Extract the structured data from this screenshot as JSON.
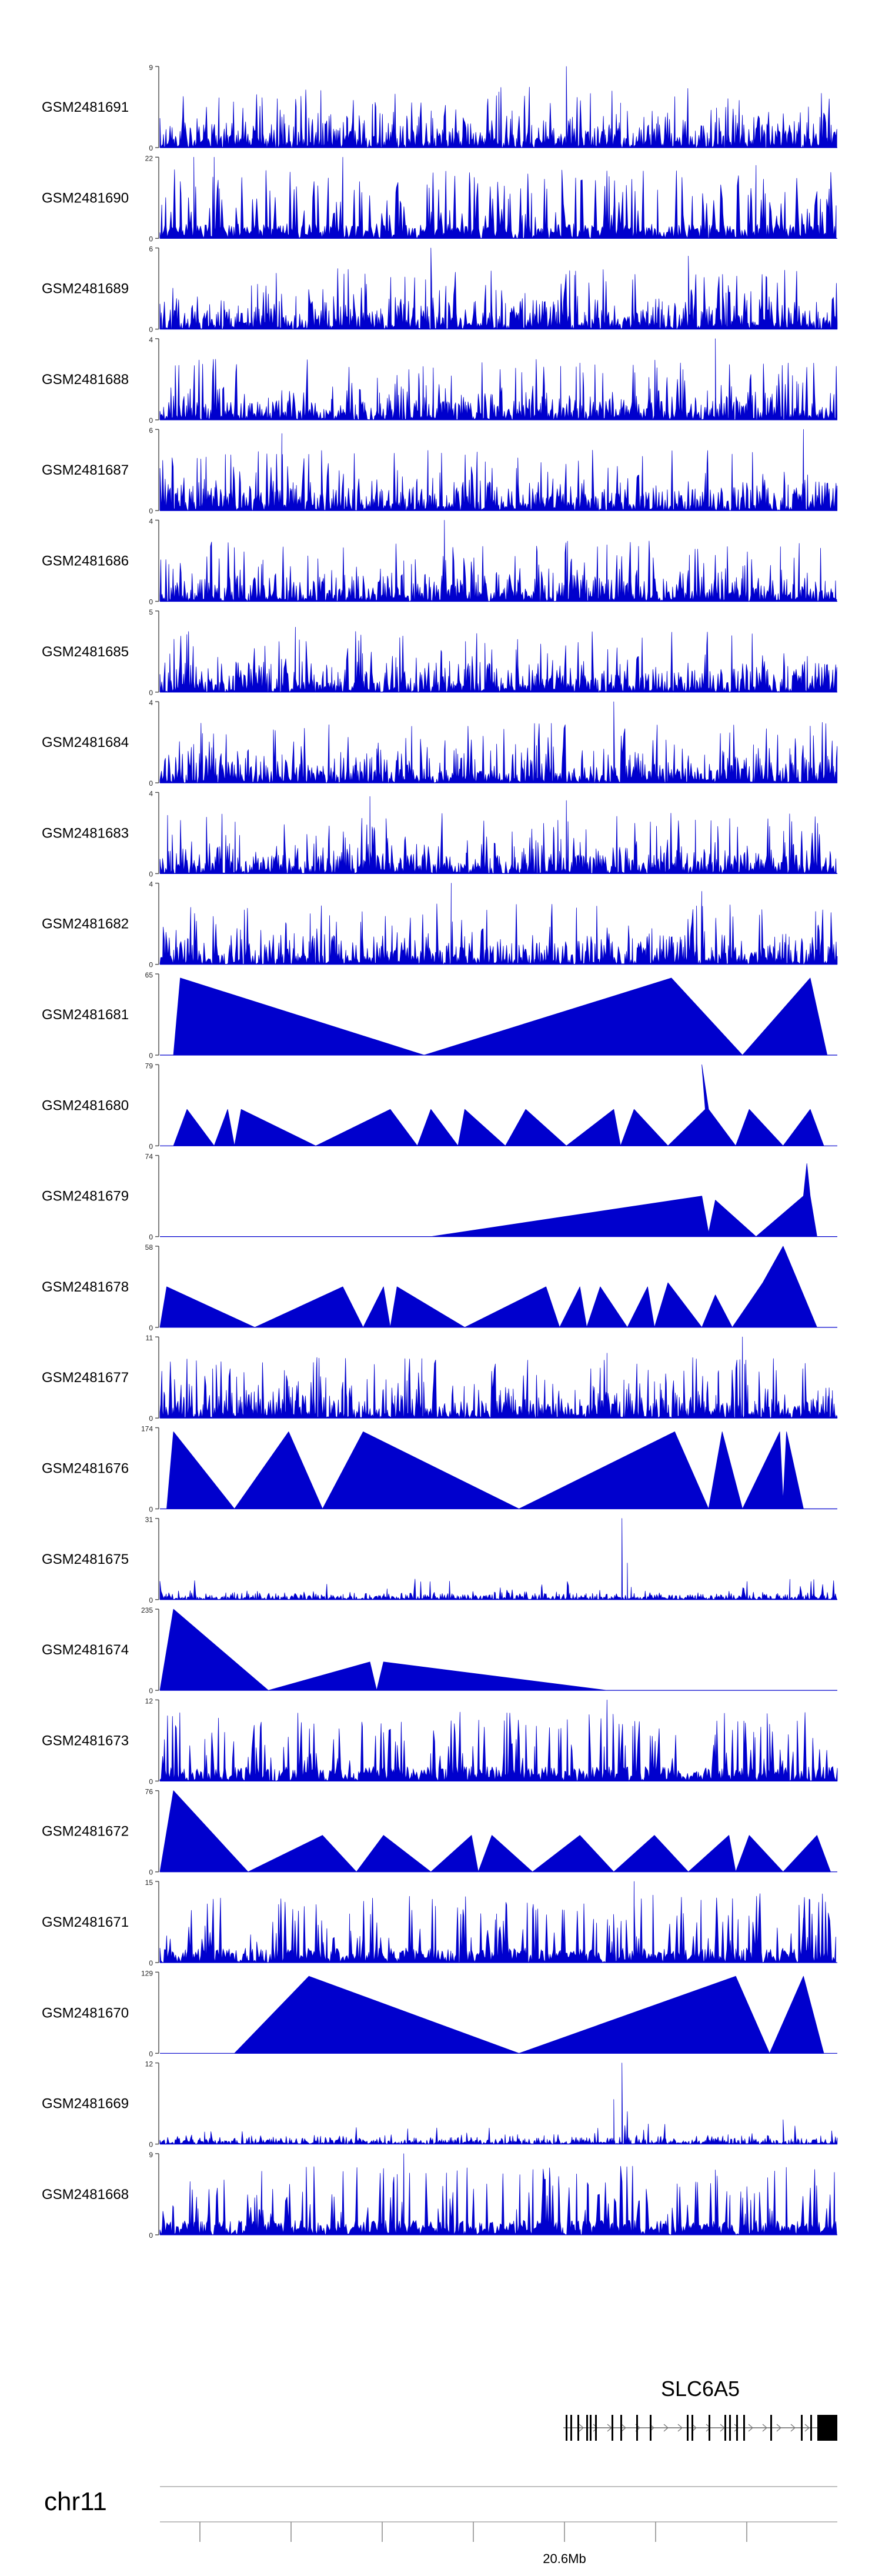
{
  "chart_data": {
    "type": "area",
    "chromosome": "chr11",
    "locus_label": "20.6Mb",
    "gene": {
      "name": "SLC6A5",
      "strand": "+"
    },
    "x_axis": {
      "ticks": 8,
      "labeled_tick": "20.6Mb"
    },
    "tracks": [
      {
        "sample": "GSM2481691",
        "ymin": 0,
        "ymax": 9,
        "style": "dense",
        "seed": 11,
        "peaks": [
          [
            0.6,
            1.0
          ],
          [
            0.68,
            0.55
          ],
          [
            0.69,
            0.45
          ],
          [
            0.85,
            0.4
          ]
        ]
      },
      {
        "sample": "GSM2481690",
        "ymin": 0,
        "ymax": 22,
        "style": "comb",
        "seed": 12,
        "peaks": [
          [
            0.03,
            0.7
          ],
          [
            0.05,
            1.0
          ],
          [
            0.08,
            1.0
          ],
          [
            0.27,
            1.0
          ],
          [
            0.88,
            0.9
          ]
        ]
      },
      {
        "sample": "GSM2481689",
        "ymin": 0,
        "ymax": 6,
        "style": "dense",
        "seed": 13,
        "peaks": [
          [
            0.4,
            1.0
          ],
          [
            0.78,
            0.9
          ]
        ]
      },
      {
        "sample": "GSM2481688",
        "ymin": 0,
        "ymax": 4,
        "style": "dense",
        "seed": 14,
        "peaks": [
          [
            0.82,
            1.0
          ],
          [
            0.62,
            0.7
          ]
        ]
      },
      {
        "sample": "GSM2481687",
        "ymin": 0,
        "ymax": 6,
        "style": "dense",
        "seed": 15,
        "peaks": [
          [
            0.18,
            0.95
          ],
          [
            0.95,
            1.0
          ]
        ]
      },
      {
        "sample": "GSM2481686",
        "ymin": 0,
        "ymax": 4,
        "style": "dense",
        "seed": 16,
        "peaks": [
          [
            0.42,
            1.0
          ]
        ]
      },
      {
        "sample": "GSM2481685",
        "ymin": 0,
        "ymax": 5,
        "style": "dense",
        "seed": 17,
        "peaks": [
          [
            0.2,
            0.8
          ]
        ]
      },
      {
        "sample": "GSM2481684",
        "ymin": 0,
        "ymax": 4,
        "style": "dense",
        "seed": 18,
        "peaks": [
          [
            0.67,
            1.0
          ],
          [
            0.96,
            0.7
          ]
        ]
      },
      {
        "sample": "GSM2481683",
        "ymin": 0,
        "ymax": 4,
        "style": "dense",
        "seed": 19,
        "peaks": [
          [
            0.31,
            0.95
          ],
          [
            0.6,
            0.9
          ]
        ]
      },
      {
        "sample": "GSM2481682",
        "ymin": 0,
        "ymax": 4,
        "style": "dense",
        "seed": 20,
        "peaks": [
          [
            0.43,
            1.0
          ],
          [
            0.8,
            0.9
          ]
        ]
      },
      {
        "sample": "GSM2481681",
        "ymin": 0,
        "ymax": 65,
        "style": "sparse",
        "seed": 21,
        "points": [
          [
            0.0,
            0.0
          ],
          [
            0.02,
            0.0
          ],
          [
            0.03,
            0.95
          ],
          [
            0.39,
            0.0
          ],
          [
            0.755,
            0.95
          ],
          [
            0.86,
            0.0
          ],
          [
            0.96,
            0.95
          ],
          [
            0.985,
            0.0
          ]
        ]
      },
      {
        "sample": "GSM2481680",
        "ymin": 0,
        "ymax": 79,
        "style": "sparse",
        "seed": 22,
        "points": [
          [
            0.02,
            0.0
          ],
          [
            0.04,
            0.45
          ],
          [
            0.08,
            0.0
          ],
          [
            0.1,
            0.45
          ],
          [
            0.11,
            0.0
          ],
          [
            0.12,
            0.45
          ],
          [
            0.23,
            0.0
          ],
          [
            0.34,
            0.45
          ],
          [
            0.38,
            0.0
          ],
          [
            0.4,
            0.45
          ],
          [
            0.44,
            0.0
          ],
          [
            0.45,
            0.45
          ],
          [
            0.51,
            0.0
          ],
          [
            0.54,
            0.45
          ],
          [
            0.6,
            0.0
          ],
          [
            0.67,
            0.45
          ],
          [
            0.68,
            0.0
          ],
          [
            0.7,
            0.45
          ],
          [
            0.75,
            0.0
          ],
          [
            0.805,
            0.45
          ],
          [
            0.8,
            1.0
          ],
          [
            0.81,
            0.45
          ],
          [
            0.85,
            0.0
          ],
          [
            0.87,
            0.45
          ],
          [
            0.92,
            0.0
          ],
          [
            0.96,
            0.45
          ],
          [
            0.98,
            0.0
          ]
        ]
      },
      {
        "sample": "GSM2481679",
        "ymin": 0,
        "ymax": 74,
        "style": "sparse",
        "seed": 23,
        "points": [
          [
            0.4,
            0.0
          ],
          [
            0.8,
            0.5
          ],
          [
            0.81,
            0.05
          ],
          [
            0.82,
            0.45
          ],
          [
            0.88,
            0.0
          ],
          [
            0.95,
            0.5
          ],
          [
            0.955,
            0.9
          ],
          [
            0.96,
            0.5
          ],
          [
            0.97,
            0.0
          ]
        ]
      },
      {
        "sample": "GSM2481678",
        "ymin": 0,
        "ymax": 58,
        "style": "sparse",
        "seed": 24,
        "points": [
          [
            0.0,
            0.0
          ],
          [
            0.01,
            0.5
          ],
          [
            0.14,
            0.0
          ],
          [
            0.27,
            0.5
          ],
          [
            0.3,
            0.0
          ],
          [
            0.33,
            0.5
          ],
          [
            0.34,
            0.0
          ],
          [
            0.35,
            0.5
          ],
          [
            0.45,
            0.0
          ],
          [
            0.57,
            0.5
          ],
          [
            0.59,
            0.0
          ],
          [
            0.62,
            0.5
          ],
          [
            0.63,
            0.0
          ],
          [
            0.65,
            0.5
          ],
          [
            0.69,
            0.0
          ],
          [
            0.72,
            0.5
          ],
          [
            0.73,
            0.0
          ],
          [
            0.75,
            0.55
          ],
          [
            0.8,
            0.0
          ],
          [
            0.82,
            0.4
          ],
          [
            0.845,
            0.0
          ],
          [
            0.89,
            0.55
          ],
          [
            0.92,
            1.0
          ],
          [
            0.95,
            0.4
          ],
          [
            0.97,
            0.0
          ]
        ]
      },
      {
        "sample": "GSM2481677",
        "ymin": 0,
        "ymax": 11,
        "style": "dense",
        "seed": 25,
        "peaks": [
          [
            0.66,
            0.8
          ],
          [
            0.86,
            1.0
          ],
          [
            0.73,
            0.45
          ]
        ]
      },
      {
        "sample": "GSM2481676",
        "ymin": 0,
        "ymax": 174,
        "style": "sparse",
        "seed": 26,
        "points": [
          [
            0.01,
            0.0
          ],
          [
            0.02,
            0.95
          ],
          [
            0.11,
            0.0
          ],
          [
            0.19,
            0.95
          ],
          [
            0.24,
            0.0
          ],
          [
            0.3,
            0.95
          ],
          [
            0.53,
            0.0
          ],
          [
            0.76,
            0.95
          ],
          [
            0.81,
            0.0
          ],
          [
            0.83,
            0.95
          ],
          [
            0.86,
            0.0
          ],
          [
            0.915,
            0.95
          ],
          [
            0.92,
            0.1
          ],
          [
            0.925,
            0.95
          ],
          [
            0.95,
            0.0
          ]
        ]
      },
      {
        "sample": "GSM2481675",
        "ymin": 0,
        "ymax": 31,
        "style": "noise",
        "seed": 27,
        "peaks": [
          [
            0.682,
            1.0
          ],
          [
            0.69,
            0.45
          ],
          [
            0.93,
            0.25
          ]
        ]
      },
      {
        "sample": "GSM2481674",
        "ymin": 0,
        "ymax": 235,
        "style": "sparse",
        "seed": 28,
        "points": [
          [
            0.0,
            0.0
          ],
          [
            0.02,
            1.0
          ],
          [
            0.16,
            0.0
          ],
          [
            0.31,
            0.35
          ],
          [
            0.32,
            0.0
          ],
          [
            0.33,
            0.35
          ],
          [
            0.66,
            0.0
          ]
        ]
      },
      {
        "sample": "GSM2481673",
        "ymin": 0,
        "ymax": 12,
        "style": "comb",
        "seed": 29,
        "peaks": [
          [
            0.66,
            1.0
          ],
          [
            0.33,
            0.6
          ],
          [
            0.9,
            0.7
          ]
        ]
      },
      {
        "sample": "GSM2481672",
        "ymin": 0,
        "ymax": 76,
        "style": "sparse",
        "seed": 30,
        "points": [
          [
            0.0,
            0.0
          ],
          [
            0.02,
            1.0
          ],
          [
            0.13,
            0.0
          ],
          [
            0.24,
            0.45
          ],
          [
            0.29,
            0.0
          ],
          [
            0.33,
            0.45
          ],
          [
            0.4,
            0.0
          ],
          [
            0.46,
            0.45
          ],
          [
            0.47,
            0.0
          ],
          [
            0.49,
            0.45
          ],
          [
            0.55,
            0.0
          ],
          [
            0.62,
            0.45
          ],
          [
            0.67,
            0.0
          ],
          [
            0.73,
            0.45
          ],
          [
            0.78,
            0.0
          ],
          [
            0.84,
            0.45
          ],
          [
            0.85,
            0.0
          ],
          [
            0.87,
            0.45
          ],
          [
            0.92,
            0.0
          ],
          [
            0.97,
            0.45
          ],
          [
            0.99,
            0.0
          ]
        ]
      },
      {
        "sample": "GSM2481671",
        "ymin": 0,
        "ymax": 15,
        "style": "comb",
        "seed": 31,
        "peaks": [
          [
            0.7,
            1.0
          ],
          [
            0.28,
            0.6
          ],
          [
            0.95,
            0.55
          ]
        ]
      },
      {
        "sample": "GSM2481670",
        "ymin": 0,
        "ymax": 129,
        "style": "sparse",
        "seed": 32,
        "points": [
          [
            0.11,
            0.0
          ],
          [
            0.22,
            0.95
          ],
          [
            0.53,
            0.0
          ],
          [
            0.85,
            0.95
          ],
          [
            0.9,
            0.0
          ],
          [
            0.95,
            0.95
          ],
          [
            0.98,
            0.0
          ]
        ]
      },
      {
        "sample": "GSM2481669",
        "ymin": 0,
        "ymax": 12,
        "style": "noise",
        "seed": 33,
        "peaks": [
          [
            0.682,
            1.0
          ],
          [
            0.67,
            0.55
          ],
          [
            0.69,
            0.4
          ],
          [
            0.92,
            0.3
          ]
        ]
      },
      {
        "sample": "GSM2481668",
        "ymin": 0,
        "ymax": 9,
        "style": "comb",
        "seed": 34,
        "peaks": [
          [
            0.36,
            1.0
          ],
          [
            0.82,
            0.8
          ]
        ]
      }
    ]
  }
}
